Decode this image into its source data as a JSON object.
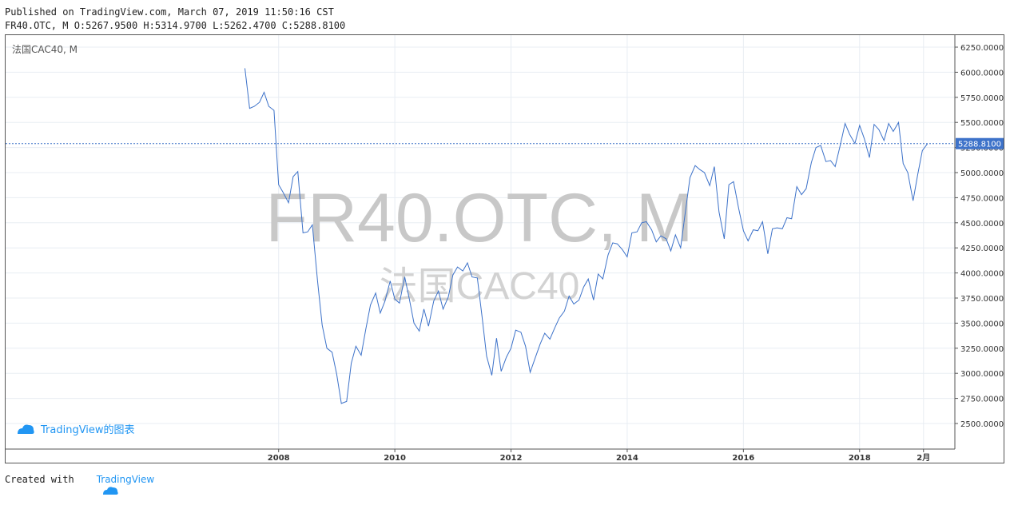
{
  "header": {
    "published": "Published on TradingView.com, March 07, 2019 11:50:16 CST",
    "ohlc": "FR40.OTC, M O:5267.9500 H:5314.9700 L:5262.4700 C:5288.8100"
  },
  "chart_title": "法国CAC40, M",
  "watermark": {
    "symbol": "FR40.OTC, M",
    "name": "法国CAC40"
  },
  "logo_text": "TradingView的图表",
  "footer": {
    "created": "Created with",
    "brand": "TradingView"
  },
  "colors": {
    "line": "#3d72c9",
    "grid": "#e8edf3",
    "axis": "#555555",
    "price_label_bg": "#3d72c9",
    "watermark": "#c8c8c8",
    "brand": "#2196f3"
  },
  "chart_data": {
    "type": "line",
    "series": [
      {
        "x": [
          2007.42,
          2007.5,
          2007.58,
          2007.67,
          2007.75,
          2007.83,
          2007.92,
          2008.0,
          2008.08,
          2008.17,
          2008.25,
          2008.33,
          2008.42,
          2008.5,
          2008.58,
          2008.67,
          2008.75,
          2008.83,
          2008.92,
          2009.0,
          2009.08,
          2009.17,
          2009.25,
          2009.33,
          2009.42,
          2009.5,
          2009.58,
          2009.67,
          2009.75,
          2009.83,
          2009.92,
          2010.0,
          2010.08,
          2010.17,
          2010.25,
          2010.33,
          2010.42,
          2010.5,
          2010.58,
          2010.67,
          2010.75,
          2010.83,
          2010.92,
          2011.0,
          2011.08,
          2011.17,
          2011.25,
          2011.33,
          2011.42,
          2011.5,
          2011.58,
          2011.67,
          2011.75,
          2011.83,
          2011.92,
          2012.0,
          2012.08,
          2012.17,
          2012.25,
          2012.33,
          2012.42,
          2012.5,
          2012.58,
          2012.67,
          2012.75,
          2012.83,
          2012.92,
          2013.0,
          2013.08,
          2013.17,
          2013.25,
          2013.33,
          2013.42,
          2013.5,
          2013.58,
          2013.67,
          2013.75,
          2013.83,
          2013.92,
          2014.0,
          2014.08,
          2014.17,
          2014.25,
          2014.33,
          2014.42,
          2014.5,
          2014.58,
          2014.67,
          2014.75,
          2014.83,
          2014.92,
          2015.0,
          2015.08,
          2015.17,
          2015.25,
          2015.33,
          2015.42,
          2015.5,
          2015.58,
          2015.67,
          2015.75,
          2015.83,
          2015.92,
          2016.0,
          2016.08,
          2016.17,
          2016.25,
          2016.33,
          2016.42,
          2016.5,
          2016.58,
          2016.67,
          2016.75,
          2016.83,
          2016.92,
          2017.0,
          2017.08,
          2017.17,
          2017.25,
          2017.33,
          2017.42,
          2017.5,
          2017.58,
          2017.67,
          2017.75,
          2017.83,
          2017.92,
          2018.0,
          2018.08,
          2018.17,
          2018.25,
          2018.33,
          2018.42,
          2018.5,
          2018.58,
          2018.67,
          2018.75,
          2018.83,
          2018.92,
          2019.0,
          2019.08,
          2019.17
        ],
        "y": [
          6040,
          5640,
          5660,
          5700,
          5800,
          5660,
          5620,
          4880,
          4800,
          4700,
          4960,
          5010,
          4400,
          4410,
          4480,
          3920,
          3480,
          3250,
          3210,
          2990,
          2700,
          2720,
          3100,
          3270,
          3180,
          3440,
          3680,
          3800,
          3600,
          3720,
          3920,
          3740,
          3700,
          3960,
          3740,
          3500,
          3420,
          3640,
          3470,
          3720,
          3820,
          3640,
          3760,
          3980,
          4060,
          4020,
          4100,
          3960,
          3950,
          3570,
          3170,
          2980,
          3350,
          3020,
          3160,
          3250,
          3430,
          3410,
          3270,
          3010,
          3160,
          3290,
          3400,
          3340,
          3450,
          3550,
          3620,
          3770,
          3690,
          3730,
          3860,
          3940,
          3730,
          3990,
          3940,
          4180,
          4300,
          4290,
          4230,
          4160,
          4400,
          4410,
          4500,
          4510,
          4430,
          4310,
          4370,
          4340,
          4220,
          4380,
          4250,
          4600,
          4950,
          5070,
          5030,
          5000,
          4870,
          5060,
          4610,
          4340,
          4880,
          4910,
          4640,
          4420,
          4320,
          4430,
          4420,
          4510,
          4190,
          4440,
          4450,
          4440,
          4550,
          4540,
          4860,
          4780,
          4840,
          5100,
          5250,
          5270,
          5110,
          5120,
          5060,
          5280,
          5490,
          5380,
          5290,
          5470,
          5340,
          5150,
          5480,
          5430,
          5320,
          5490,
          5410,
          5500,
          5090,
          5000,
          4720,
          4980,
          5220,
          5289
        ]
      }
    ],
    "x_ticks": [
      "2008",
      "2010",
      "2012",
      "2014",
      "2016",
      "2018",
      "2月"
    ],
    "y_ticks": [
      "2500.0000",
      "2750.0000",
      "3000.0000",
      "3250.0000",
      "3500.0000",
      "3750.0000",
      "4000.0000",
      "4250.0000",
      "4500.0000",
      "4750.0000",
      "5000.0000",
      "5250.0000",
      "5500.0000",
      "5750.0000",
      "6000.0000",
      "6250.0000"
    ],
    "current_price": 5288.81,
    "current_price_label": "5288.8100",
    "ylim": [
      2500,
      6250
    ],
    "xlim": [
      2003.3,
      2019.64
    ],
    "grid": true
  }
}
